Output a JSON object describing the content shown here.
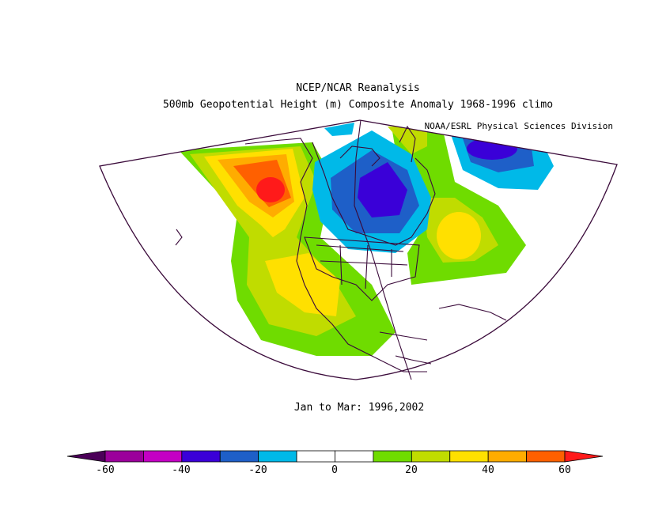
{
  "title_line1": "NCEP/NCAR Reanalysis",
  "title_line2": "500mb Geopotential Height (m) Composite Anomaly 1968-1996 climo",
  "credit": "NOAA/ESRL Physical Sciences Division",
  "period": "Jan to Mar: 1996,2002",
  "colorbar": {
    "colors": [
      "#4b0058",
      "#9b009b",
      "#c400c4",
      "#3a00d8",
      "#1e5fc8",
      "#00b9e8",
      "#ffffff",
      "#ffffff",
      "#6fdc00",
      "#c0dc00",
      "#ffe000",
      "#ffac00",
      "#ff6000",
      "#ff1a1a"
    ],
    "ticks": [
      "-60",
      "-40",
      "-20",
      "0",
      "20",
      "40",
      "60"
    ]
  },
  "colors": {
    "blue_core": "#3a00d8",
    "blue_mid": "#1e5fc8",
    "cyan": "#00b9e8",
    "green": "#6fdc00",
    "yellowgreen": "#c0dc00",
    "yellow": "#ffe000",
    "orange": "#ffac00",
    "darkorange": "#ff6000",
    "red": "#ff1a1a",
    "outline": "#3a0a3a"
  }
}
